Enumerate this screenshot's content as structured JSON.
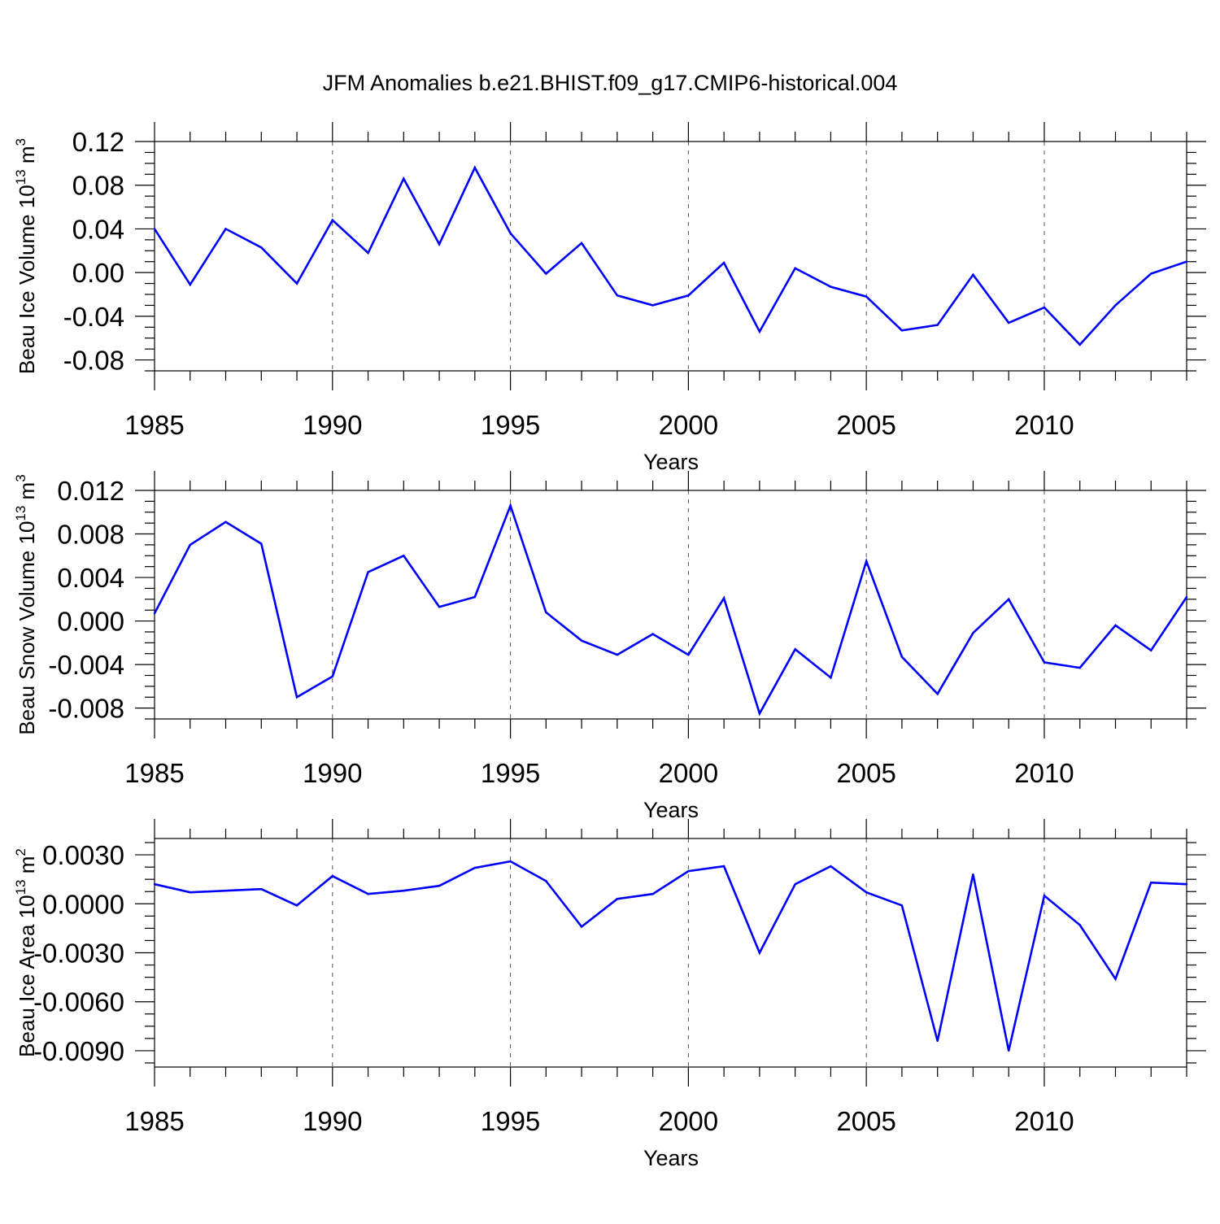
{
  "chart_data": {
    "title": "JFM Anomalies b.e21.BHIST.f09_g17.CMIP6-historical.004",
    "panels": [
      {
        "type": "line",
        "ylabel": "Beau Ice Volume 10",
        "ylabel_sup1": "13",
        "ylabel_unit": " m",
        "ylabel_sup2": "3",
        "xlabel": "Years",
        "xlim": [
          1985,
          2014
        ],
        "ylim": [
          -0.09,
          0.12
        ],
        "yticks": [
          -0.08,
          -0.04,
          0.0,
          0.04,
          0.08,
          0.12
        ],
        "ytick_labels": [
          "-0.08",
          "-0.04",
          "0.00",
          "0.04",
          "0.08",
          "0.12"
        ],
        "xticks": [
          1985,
          1990,
          1995,
          2000,
          2005,
          2010
        ],
        "xtick_labels": [
          "1985",
          "1990",
          "1995",
          "2000",
          "2005",
          "2010"
        ],
        "grid_years": [
          1990,
          1995,
          2000,
          2005,
          2010
        ],
        "line_color": "#0000ff",
        "x": [
          1985,
          1986,
          1987,
          1988,
          1989,
          1990,
          1991,
          1992,
          1993,
          1994,
          1995,
          1996,
          1997,
          1998,
          1999,
          2000,
          2001,
          2002,
          2003,
          2004,
          2005,
          2006,
          2007,
          2008,
          2009,
          2010,
          2011,
          2012,
          2013,
          2014
        ],
        "values": [
          0.04,
          -0.011,
          0.04,
          0.023,
          -0.01,
          0.048,
          0.018,
          0.086,
          0.026,
          0.096,
          0.036,
          -0.001,
          0.027,
          -0.021,
          -0.03,
          -0.021,
          0.009,
          -0.054,
          0.004,
          -0.013,
          -0.022,
          -0.053,
          -0.048,
          -0.002,
          -0.046,
          -0.032,
          -0.066,
          -0.03,
          -0.001,
          0.01
        ]
      },
      {
        "type": "line",
        "ylabel": "Beau Snow Volume 10",
        "ylabel_sup1": "13",
        "ylabel_unit": " m",
        "ylabel_sup2": "3",
        "xlabel": "Years",
        "xlim": [
          1985,
          2014
        ],
        "ylim": [
          -0.009,
          0.012
        ],
        "yticks": [
          -0.008,
          -0.004,
          0.0,
          0.004,
          0.008,
          0.012
        ],
        "ytick_labels": [
          "-0.008",
          "-0.004",
          "0.000",
          "0.004",
          "0.008",
          "0.012"
        ],
        "xticks": [
          1985,
          1990,
          1995,
          2000,
          2005,
          2010
        ],
        "xtick_labels": [
          "1985",
          "1990",
          "1995",
          "2000",
          "2005",
          "2010"
        ],
        "grid_years": [
          1990,
          1995,
          2000,
          2005,
          2010
        ],
        "line_color": "#0000ff",
        "x": [
          1985,
          1986,
          1987,
          1988,
          1989,
          1990,
          1991,
          1992,
          1993,
          1994,
          1995,
          1996,
          1997,
          1998,
          1999,
          2000,
          2001,
          2002,
          2003,
          2004,
          2005,
          2006,
          2007,
          2008,
          2009,
          2010,
          2011,
          2012,
          2013,
          2014
        ],
        "values": [
          0.0007,
          0.007,
          0.0091,
          0.0071,
          -0.007,
          -0.0051,
          0.0045,
          0.006,
          0.0013,
          0.0022,
          0.0106,
          0.0008,
          -0.0018,
          -0.0031,
          -0.0012,
          -0.0031,
          0.0021,
          -0.0085,
          -0.0026,
          -0.0052,
          0.0055,
          -0.0033,
          -0.0067,
          -0.0011,
          0.002,
          -0.0038,
          -0.0043,
          -0.0004,
          -0.0027,
          0.0022
        ]
      },
      {
        "type": "line",
        "ylabel": "Beau Ice Area 10",
        "ylabel_sup1": "13",
        "ylabel_unit": " m",
        "ylabel_sup2": "2",
        "xlabel": "Years",
        "xlim": [
          1985,
          2014
        ],
        "ylim": [
          -0.01,
          0.004
        ],
        "yticks": [
          -0.009,
          -0.006,
          -0.003,
          0.0,
          0.003
        ],
        "ytick_labels": [
          "-0.0090",
          "-0.0060",
          "-0.0030",
          "0.0000",
          "0.0030"
        ],
        "xticks": [
          1985,
          1990,
          1995,
          2000,
          2005,
          2010
        ],
        "xtick_labels": [
          "1985",
          "1990",
          "1995",
          "2000",
          "2005",
          "2010"
        ],
        "grid_years": [
          1990,
          1995,
          2000,
          2005,
          2010
        ],
        "line_color": "#0000ff",
        "x": [
          1985,
          1986,
          1987,
          1988,
          1989,
          1990,
          1991,
          1992,
          1993,
          1994,
          1995,
          1996,
          1997,
          1998,
          1999,
          2000,
          2001,
          2002,
          2003,
          2004,
          2005,
          2006,
          2007,
          2008,
          2009,
          2010,
          2011,
          2012,
          2013,
          2014
        ],
        "values": [
          0.0012,
          0.0007,
          0.0008,
          0.0009,
          -0.0001,
          0.0017,
          0.0006,
          0.0008,
          0.0011,
          0.0022,
          0.0026,
          0.0014,
          -0.0014,
          0.0003,
          0.0006,
          0.002,
          0.0023,
          -0.003,
          0.0012,
          0.0023,
          0.0007,
          -0.0001,
          -0.0084,
          0.0018,
          -0.009,
          0.0005,
          -0.0013,
          -0.0046,
          0.0013,
          0.0012
        ]
      }
    ]
  }
}
